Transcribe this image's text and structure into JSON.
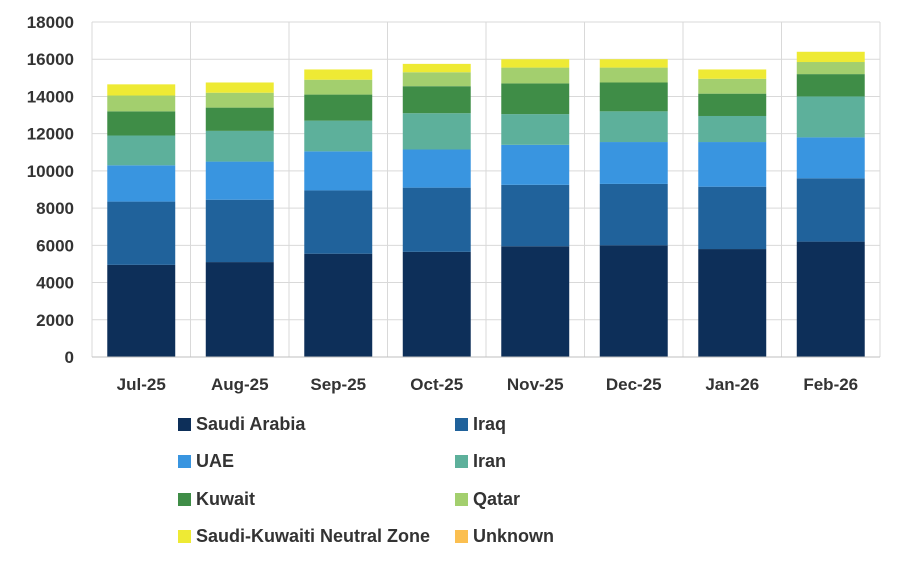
{
  "chart_data": {
    "type": "bar",
    "stacked": true,
    "title": "",
    "xlabel": "",
    "ylabel": "",
    "ylim": [
      0,
      18000
    ],
    "yticks": [
      0,
      2000,
      4000,
      6000,
      8000,
      10000,
      12000,
      14000,
      16000,
      18000
    ],
    "grid": true,
    "legend_position": "bottom",
    "categories": [
      "Jul-25",
      "Aug-25",
      "Sep-25",
      "Oct-25",
      "Nov-25",
      "Dec-25",
      "Jan-26",
      "Feb-26"
    ],
    "series": [
      {
        "name": "Saudi Arabia",
        "color": "#0d2f59",
        "values": [
          4950,
          5100,
          5550,
          5650,
          5950,
          6000,
          5800,
          6200
        ]
      },
      {
        "name": "Iraq",
        "color": "#20629b",
        "values": [
          3400,
          3350,
          3400,
          3450,
          3300,
          3300,
          3350,
          3400
        ]
      },
      {
        "name": "UAE",
        "color": "#3995e0",
        "values": [
          1950,
          2050,
          2100,
          2050,
          2150,
          2250,
          2400,
          2200
        ]
      },
      {
        "name": "Iran",
        "color": "#5db09b",
        "values": [
          1600,
          1650,
          1650,
          1950,
          1650,
          1650,
          1400,
          2200
        ]
      },
      {
        "name": "Kuwait",
        "color": "#3f8d47",
        "values": [
          1300,
          1250,
          1400,
          1450,
          1650,
          1550,
          1200,
          1200
        ]
      },
      {
        "name": "Qatar",
        "color": "#a3cf6e",
        "values": [
          850,
          800,
          800,
          750,
          850,
          800,
          800,
          650
        ]
      },
      {
        "name": "Saudi-Kuwaiti Neutral Zone",
        "color": "#eeea34",
        "values": [
          600,
          550,
          550,
          450,
          450,
          450,
          500,
          550
        ]
      },
      {
        "name": "Unknown",
        "color": "#fbbf50",
        "values": [
          0,
          0,
          0,
          0,
          0,
          0,
          0,
          0
        ]
      }
    ]
  }
}
